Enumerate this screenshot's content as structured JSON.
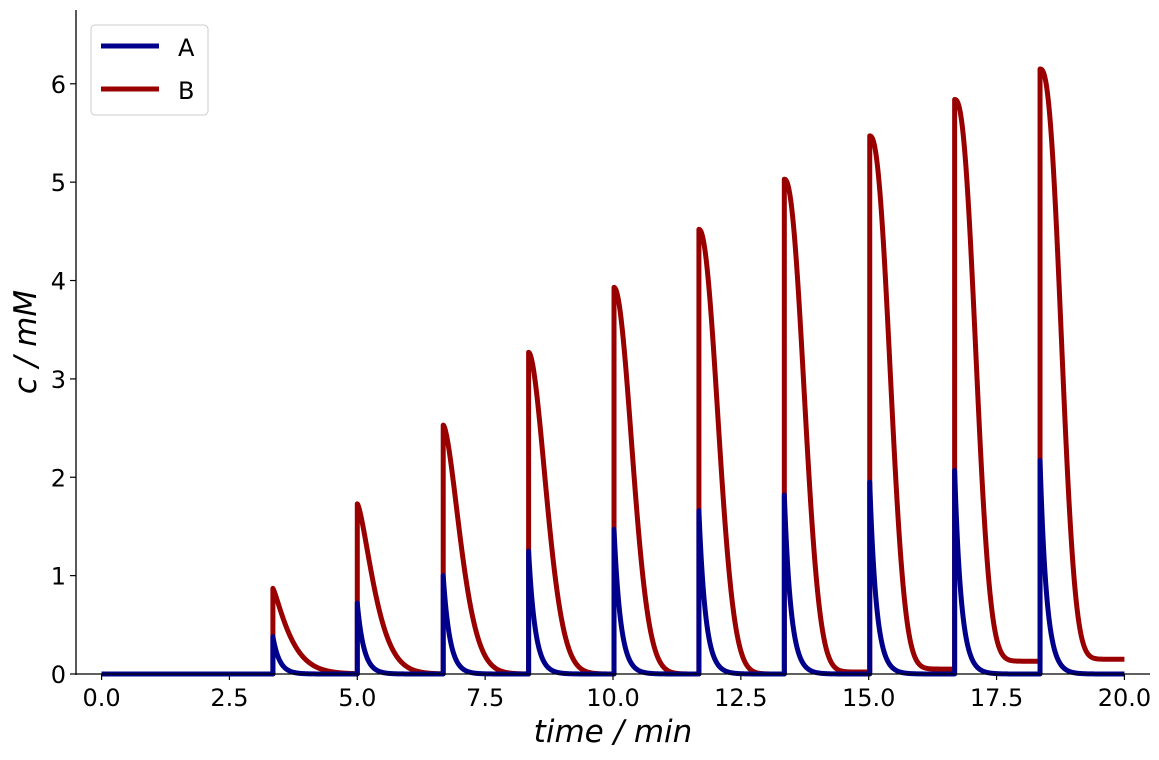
{
  "chart_data": {
    "type": "line",
    "title": "",
    "xlabel": "time / min",
    "ylabel": "c / mM",
    "xlim": [
      -0.5,
      20.5
    ],
    "ylim": [
      0,
      6.75
    ],
    "xticks": [
      0.0,
      2.5,
      5.0,
      7.5,
      10.0,
      12.5,
      15.0,
      17.5,
      20.0
    ],
    "xtick_labels": [
      "0.0",
      "2.5",
      "5.0",
      "7.5",
      "10.0",
      "12.5",
      "15.0",
      "17.5",
      "20.0"
    ],
    "yticks": [
      0,
      1,
      2,
      3,
      4,
      5,
      6
    ],
    "ytick_labels": [
      "0",
      "1",
      "2",
      "3",
      "4",
      "5",
      "6"
    ],
    "grid": false,
    "legend_position": "top-left",
    "pulse_times": [
      3.35,
      5.0,
      6.68,
      8.35,
      10.02,
      11.68,
      13.35,
      15.02,
      16.68,
      18.35
    ],
    "series": [
      {
        "name": "A",
        "color": "#00008b",
        "peaks": [
          0.38,
          0.72,
          1.0,
          1.25,
          1.47,
          1.66,
          1.82,
          1.95,
          2.07,
          2.17
        ],
        "baseline_end": 0.0
      },
      {
        "name": "B",
        "color": "#990000",
        "peaks": [
          0.87,
          1.73,
          2.53,
          3.27,
          3.93,
          4.52,
          5.03,
          5.47,
          5.84,
          6.15
        ],
        "troughs": [
          0.0,
          0.0,
          0.0,
          0.0,
          0.0,
          0.0,
          0.0,
          0.02,
          0.05,
          0.13
        ],
        "end_value": 0.15
      }
    ]
  }
}
